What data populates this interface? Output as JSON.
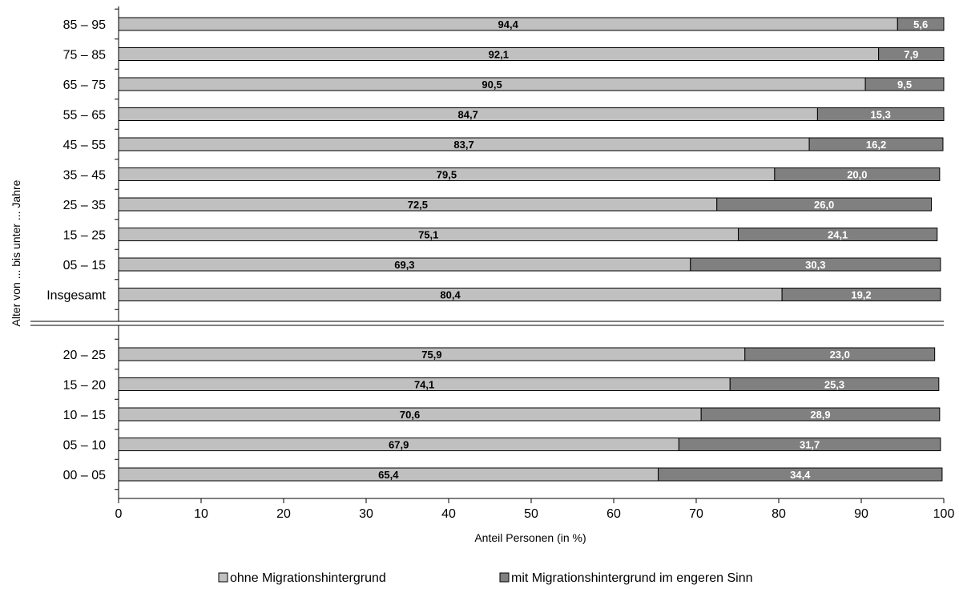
{
  "chart_data": {
    "type": "bar",
    "orientation": "horizontal",
    "stacked": true,
    "xlabel": "Anteil Personen (in %)",
    "ylabel": "Alter von ... bis unter ... Jahre",
    "xlim": [
      0,
      100
    ],
    "xticks": [
      "0",
      "10",
      "20",
      "30",
      "40",
      "50",
      "60",
      "70",
      "80",
      "90",
      "100"
    ],
    "colors": {
      "series1": "#c0c0c0",
      "series2": "#808080"
    },
    "legend_position": "bottom",
    "groups": [
      {
        "categories": [
          "85 – 95",
          "75 – 85",
          "65 – 75",
          "55 – 65",
          "45 – 55",
          "35 – 45",
          "25 – 35",
          "15 – 25",
          "05 – 15",
          "Insgesamt"
        ],
        "series": [
          {
            "name": "ohne Migrationshintergrund",
            "values": [
              94.4,
              92.1,
              90.5,
              84.7,
              83.7,
              79.5,
              72.5,
              75.1,
              69.3,
              80.4
            ],
            "labels": [
              "94,4",
              "92,1",
              "90,5",
              "84,7",
              "83,7",
              "79,5",
              "72,5",
              "75,1",
              "69,3",
              "80,4"
            ]
          },
          {
            "name": "mit Migrationshintergrund im engeren Sinn",
            "values": [
              5.6,
              7.9,
              9.5,
              15.3,
              16.2,
              20.0,
              26.0,
              24.1,
              30.3,
              19.2
            ],
            "labels": [
              "5,6",
              "7,9",
              "9,5",
              "15,3",
              "16,2",
              "20,0",
              "26,0",
              "24,1",
              "30,3",
              "19,2"
            ]
          }
        ]
      },
      {
        "categories": [
          "20 – 25",
          "15 – 20",
          "10 – 15",
          "05 – 10",
          "00 – 05"
        ],
        "series": [
          {
            "name": "ohne Migrationshintergrund",
            "values": [
              75.9,
              74.1,
              70.6,
              67.9,
              65.4
            ],
            "labels": [
              "75,9",
              "74,1",
              "70,6",
              "67,9",
              "65,4"
            ]
          },
          {
            "name": "mit Migrationshintergrund im engeren Sinn",
            "values": [
              23.0,
              25.3,
              28.9,
              31.7,
              34.4
            ],
            "labels": [
              "23,0",
              "25,3",
              "28,9",
              "31,7",
              "34,4"
            ]
          }
        ]
      }
    ],
    "legend": [
      "ohne Migrationshintergrund",
      "mit Migrationshintergrund im engeren Sinn"
    ]
  }
}
